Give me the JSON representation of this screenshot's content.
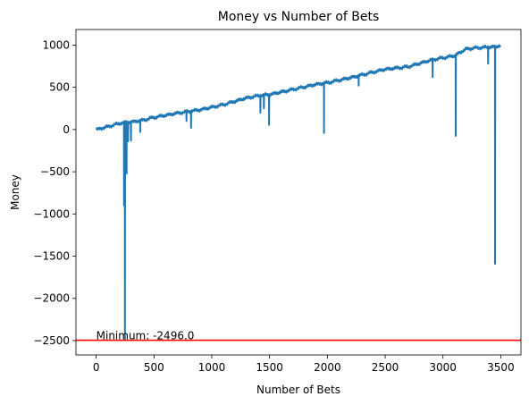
{
  "chart_data": {
    "type": "line",
    "title": "Money vs Number of Bets",
    "xlabel": "Number of Bets",
    "ylabel": "Money",
    "xlim": [
      -175,
      3675
    ],
    "ylim": [
      -2670,
      1185
    ],
    "x_ticks": [
      0,
      500,
      1000,
      1500,
      2000,
      2500,
      3000,
      3500
    ],
    "x_tick_labels": [
      "0",
      "500",
      "1000",
      "1500",
      "2000",
      "2500",
      "3000",
      "3500"
    ],
    "y_ticks": [
      -2500,
      -2000,
      -1500,
      -1000,
      -500,
      0,
      500,
      1000
    ],
    "y_tick_labels": [
      "−2500",
      "−2000",
      "−1500",
      "−1000",
      "−500",
      "0",
      "500",
      "1000"
    ],
    "grid": false,
    "series": [
      {
        "color": "#1f77b4",
        "trend_x": [
          0,
          100,
          220,
          300,
          400,
          500,
          700,
          900,
          1100,
          1300,
          1420,
          1500,
          1700,
          1900,
          2000,
          2200,
          2500,
          2700,
          2900,
          3100,
          3200,
          3300,
          3440,
          3500
        ],
        "trend_y": [
          5,
          40,
          85,
          95,
          115,
          150,
          200,
          240,
          300,
          380,
          410,
          420,
          480,
          540,
          560,
          620,
          720,
          750,
          830,
          880,
          960,
          975,
          985,
          1000
        ],
        "dips": [
          {
            "x": 240,
            "y": -900
          },
          {
            "x": 248,
            "y": -2496
          },
          {
            "x": 262,
            "y": -520
          },
          {
            "x": 275,
            "y": -140
          },
          {
            "x": 300,
            "y": -130
          },
          {
            "x": 380,
            "y": -30
          },
          {
            "x": 780,
            "y": 100
          },
          {
            "x": 820,
            "y": 20
          },
          {
            "x": 1420,
            "y": 200
          },
          {
            "x": 1450,
            "y": 250
          },
          {
            "x": 1495,
            "y": 55
          },
          {
            "x": 1970,
            "y": -40
          },
          {
            "x": 2270,
            "y": 520
          },
          {
            "x": 2910,
            "y": 620
          },
          {
            "x": 3110,
            "y": -75
          },
          {
            "x": 3390,
            "y": 780
          },
          {
            "x": 3450,
            "y": -1590
          }
        ]
      }
    ],
    "hline": {
      "y": -2496,
      "color": "#ff0000"
    },
    "annotation": {
      "text": "Minimum: -2496.0",
      "x": 0,
      "y": -2496
    }
  }
}
